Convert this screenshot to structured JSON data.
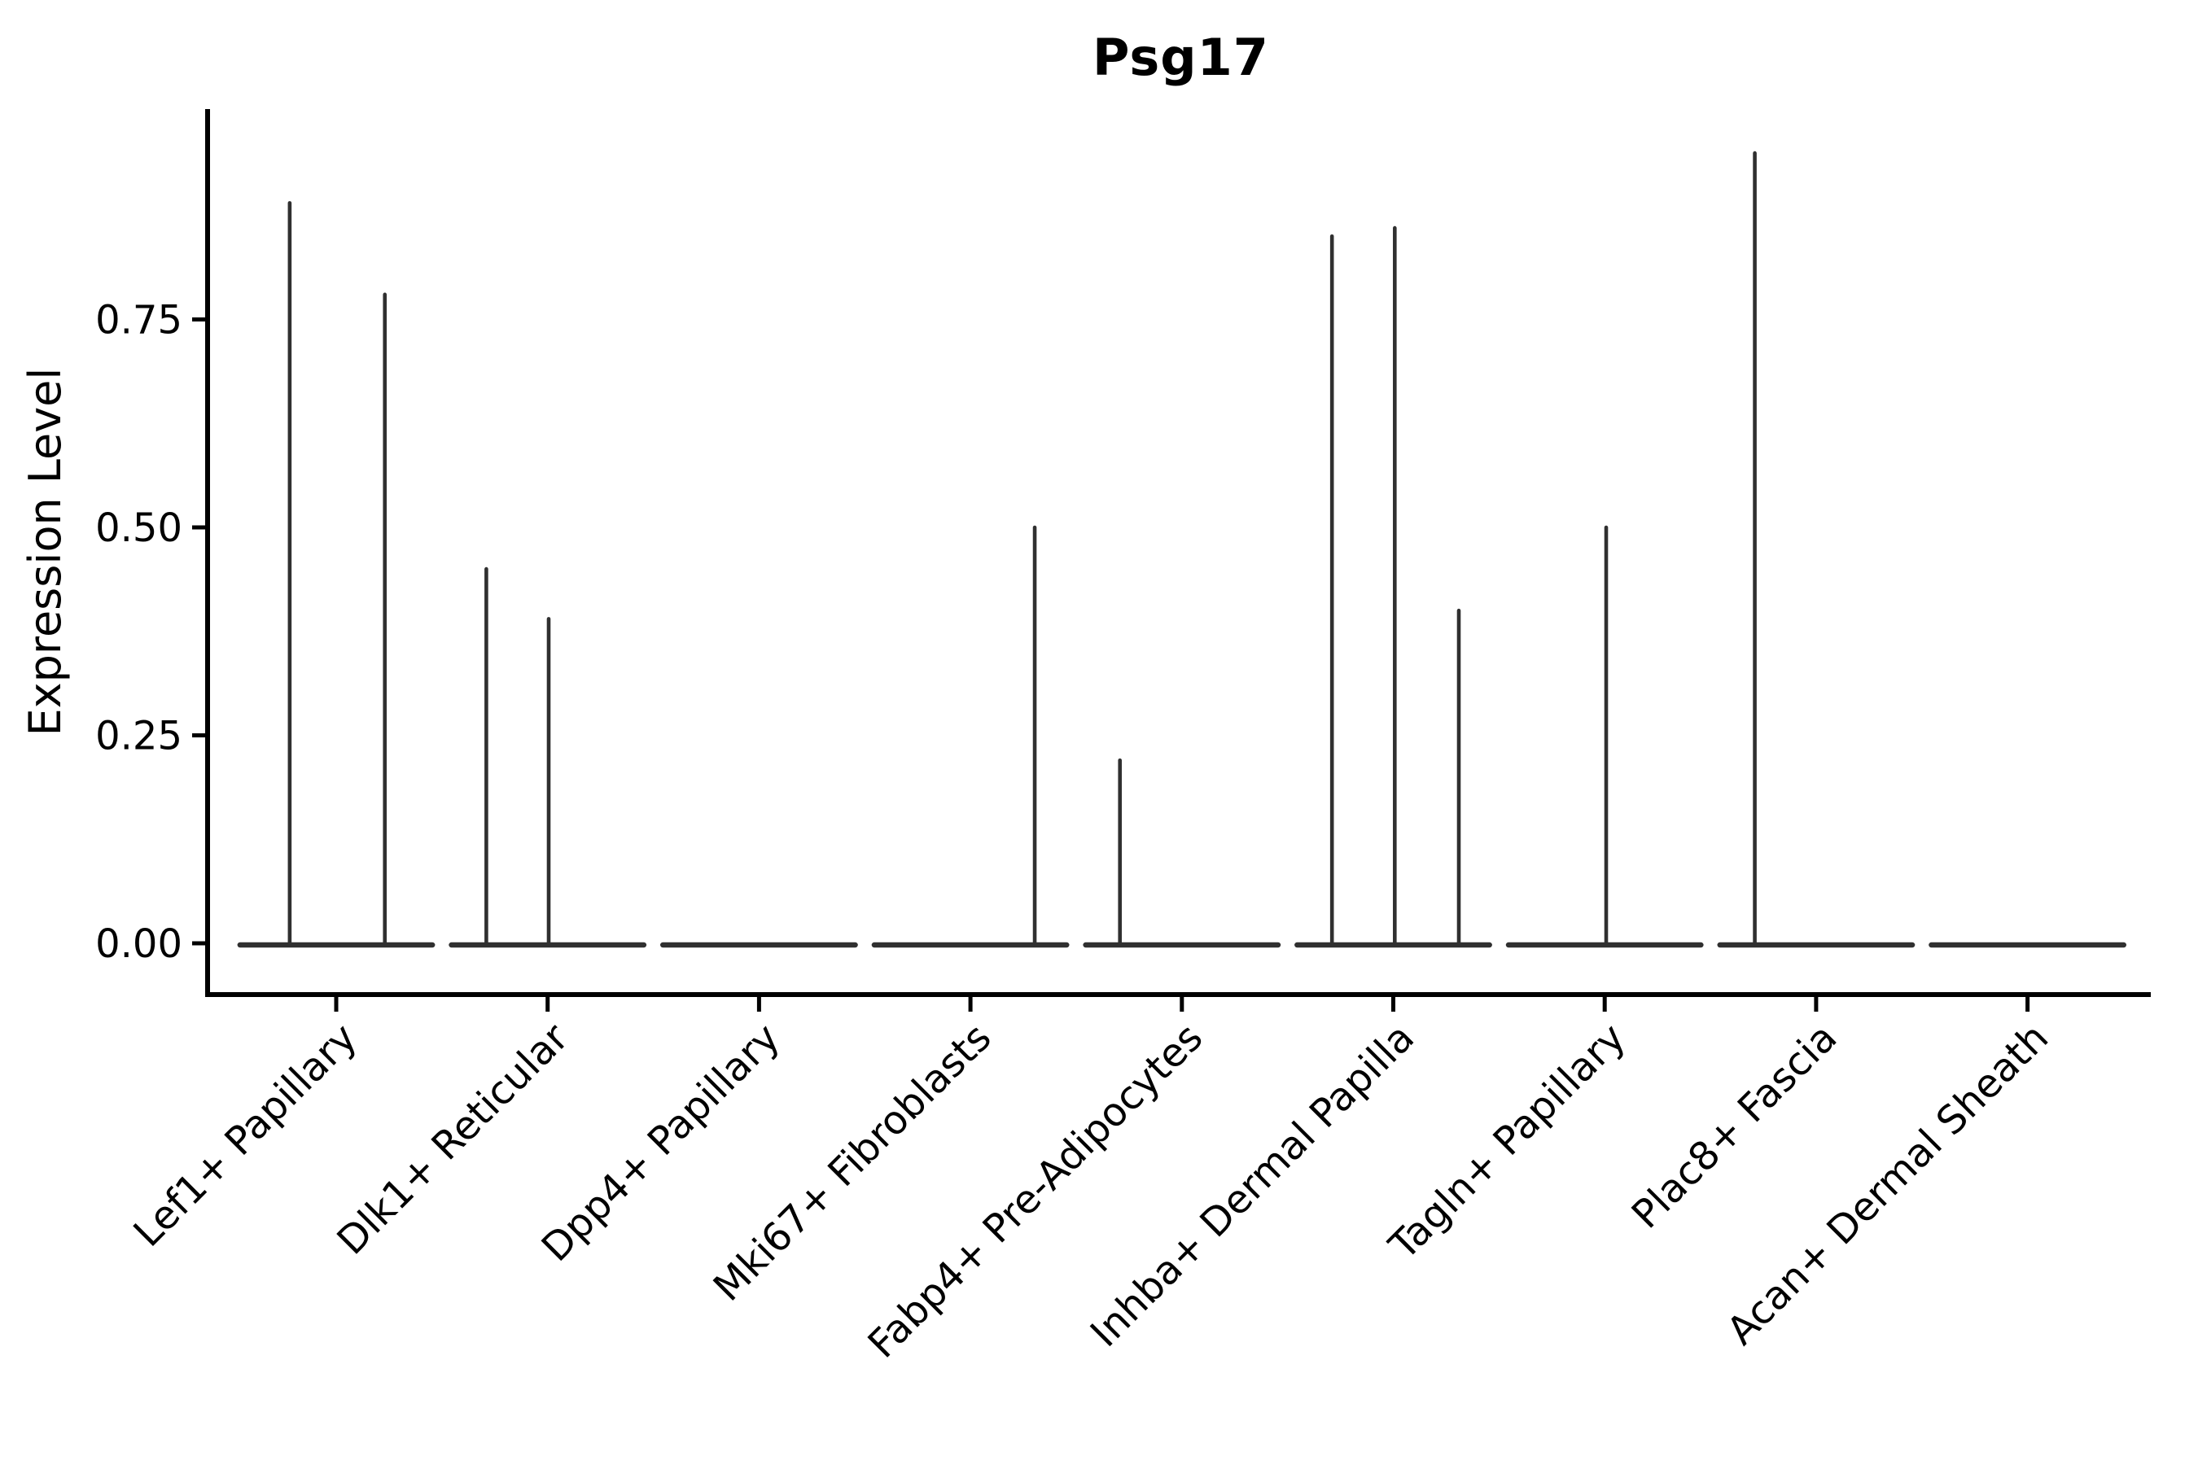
{
  "figure": {
    "title": "Psg17"
  },
  "chart_data": {
    "type": "violin",
    "title": "Psg17",
    "subtitle": "",
    "xlabel": "",
    "ylabel": "Expression Level",
    "ylim": [
      0,
      1.0
    ],
    "yticks": [
      0,
      0.25,
      0.5,
      0.75
    ],
    "ytick_labels": [
      "0.00",
      "0.25",
      "0.50",
      "0.75"
    ],
    "grid": "off",
    "legend": "none",
    "categories": [
      "Lef1+ Papillary",
      "Dlk1+ Reticular",
      "Dpp4+ Papillary",
      "Mki67+ Fibroblasts",
      "Fabp4+ Pre-Adipocytes",
      "Inhba+ Dermal Papilla",
      "Tagln+ Papillary",
      "Plac8+ Fascia",
      "Acan+ Dermal Sheath"
    ],
    "violins": [
      {
        "category": "Lef1+ Papillary",
        "base_halfwidth": 0.455,
        "baseline_value": 0,
        "spikes": [
          {
            "dx": -0.22,
            "max": 0.89
          },
          {
            "dx": 0.23,
            "max": 0.78
          }
        ]
      },
      {
        "category": "Dlk1+ Reticular",
        "base_halfwidth": 0.455,
        "baseline_value": 0,
        "spikes": [
          {
            "dx": -0.29,
            "max": 0.45
          },
          {
            "dx": 0.005,
            "max": 0.39
          }
        ]
      },
      {
        "category": "Dpp4+ Papillary",
        "base_halfwidth": 0.455,
        "baseline_value": 0,
        "spikes": []
      },
      {
        "category": "Mki67+ Fibroblasts",
        "base_halfwidth": 0.455,
        "baseline_value": 0,
        "spikes": [
          {
            "dx": 0.304,
            "max": 0.5
          }
        ]
      },
      {
        "category": "Fabp4+ Pre-Adipocytes",
        "base_halfwidth": 0.455,
        "baseline_value": 0,
        "spikes": [
          {
            "dx": -0.293,
            "max": 0.22
          }
        ]
      },
      {
        "category": "Inhba+ Dermal Papilla",
        "base_halfwidth": 0.455,
        "baseline_value": 0,
        "spikes": [
          {
            "dx": -0.29,
            "max": 0.85
          },
          {
            "dx": 0.007,
            "max": 0.86
          },
          {
            "dx": 0.31,
            "max": 0.4
          }
        ]
      },
      {
        "category": "Tagln+ Papillary",
        "base_halfwidth": 0.455,
        "baseline_value": 0,
        "spikes": [
          {
            "dx": 0.007,
            "max": 0.5
          }
        ]
      },
      {
        "category": "Plac8+ Fascia",
        "base_halfwidth": 0.455,
        "baseline_value": 0,
        "spikes": [
          {
            "dx": -0.29,
            "max": 0.95
          }
        ]
      },
      {
        "category": "Acan+ Dermal Sheath",
        "base_halfwidth": 0.455,
        "baseline_value": 0,
        "spikes": []
      }
    ],
    "style": {
      "violin_color": "#303030",
      "axis_color": "#000000",
      "text_color": "#000000",
      "background": "#ffffff"
    }
  }
}
